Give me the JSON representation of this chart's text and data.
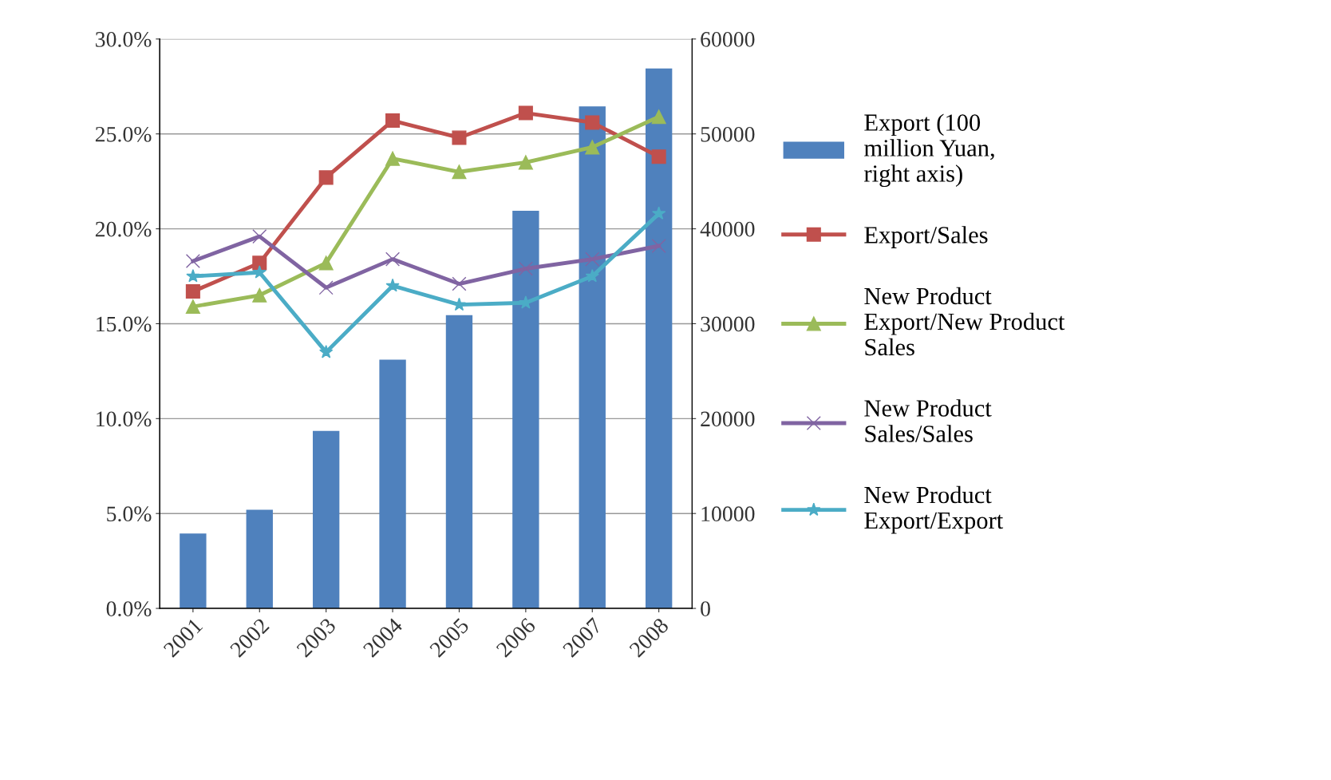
{
  "chart_data": {
    "type": "line",
    "categories": [
      "2001",
      "2002",
      "2003",
      "2004",
      "2005",
      "2006",
      "2007",
      "2008"
    ],
    "series": [
      {
        "name": "Export (100 million Yuan, right axis)",
        "type": "bar",
        "axis": "y2",
        "color": "#4f81bd",
        "values": [
          7900,
          10400,
          18700,
          26200,
          30900,
          41900,
          52900,
          56900
        ]
      },
      {
        "name": "Export/Sales",
        "color": "#c0504d",
        "marker": "square",
        "values": [
          16.7,
          18.2,
          22.7,
          25.7,
          24.8,
          26.1,
          25.6,
          23.8
        ]
      },
      {
        "name": "New Product Export/New Product Sales",
        "color": "#9bbb59",
        "marker": "triangle",
        "values": [
          15.9,
          16.5,
          18.2,
          23.7,
          23.0,
          23.5,
          24.3,
          25.9
        ]
      },
      {
        "name": "New Product Sales/Sales",
        "color": "#8064a2",
        "marker": "cross",
        "values": [
          18.3,
          19.6,
          16.9,
          18.4,
          17.1,
          17.9,
          18.4,
          19.1
        ]
      },
      {
        "name": "New Product Export/Export",
        "color": "#4bacc6",
        "marker": "star",
        "values": [
          17.5,
          17.7,
          13.5,
          17.0,
          16.0,
          16.1,
          17.5,
          20.8
        ]
      }
    ],
    "ylim": [
      0,
      30
    ],
    "yticks": [
      {
        "value": 0,
        "label": "0.0%"
      },
      {
        "value": 5,
        "label": "5.0%"
      },
      {
        "value": 10,
        "label": "10.0%"
      },
      {
        "value": 15,
        "label": "15.0%"
      },
      {
        "value": 20,
        "label": "20.0%"
      },
      {
        "value": 25,
        "label": "25.0%"
      },
      {
        "value": 30,
        "label": "30.0%"
      }
    ],
    "y2lim": [
      0,
      60000
    ],
    "y2ticks": [
      0,
      10000,
      20000,
      30000,
      40000,
      50000,
      60000
    ],
    "grid": "y",
    "legend": "right",
    "line_style": "solid"
  }
}
